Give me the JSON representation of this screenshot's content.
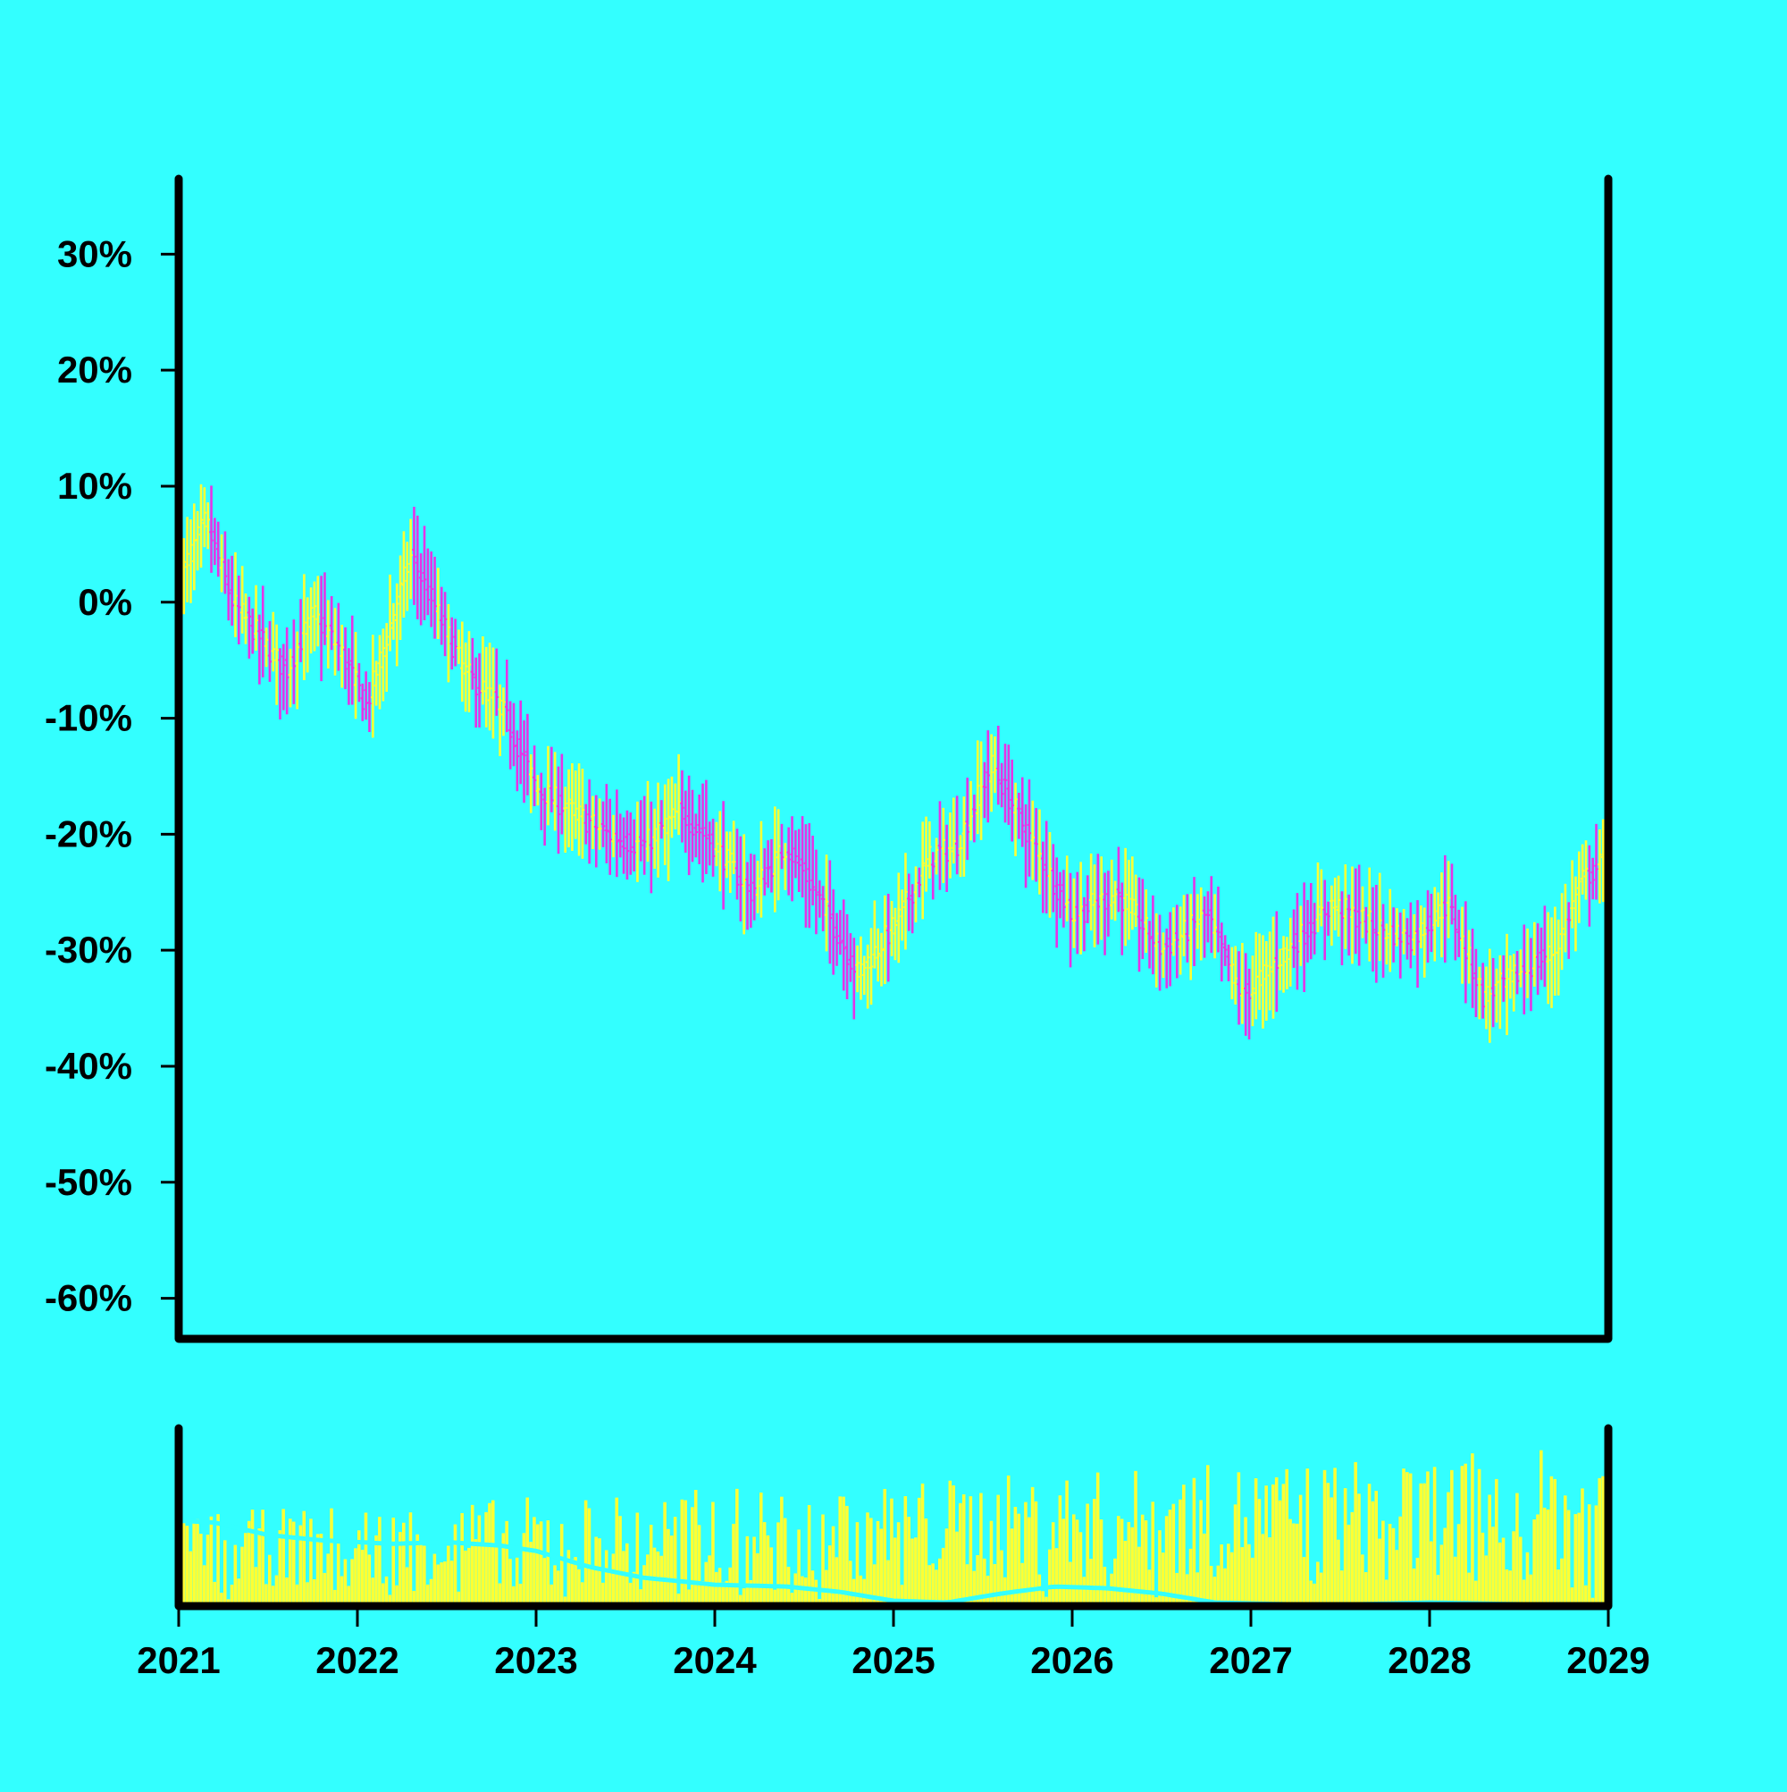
{
  "colors": {
    "background": "#33ffff",
    "up": "#ffff33",
    "down": "#e633e6",
    "axis": "#000000",
    "volume": "#ffff33",
    "volume_ma": "#33ffff"
  },
  "chart_data": {
    "type": "ohlc",
    "title": "",
    "xlabel": "",
    "ylabel": "",
    "x_tick_labels": [
      "2021",
      "2022",
      "2023",
      "2024",
      "2025",
      "2026",
      "2027",
      "2028",
      "2029"
    ],
    "y_tick_labels": [
      "30%",
      "20%",
      "10%",
      "0%",
      "-10%",
      "-20%",
      "-30%",
      "-40%",
      "-50%",
      "-60%"
    ],
    "y_tick_values": [
      30,
      20,
      10,
      0,
      -10,
      -20,
      -30,
      -40,
      -50,
      -60
    ],
    "xlim": [
      2021.0,
      2029.0
    ],
    "ylim": [
      -63.5,
      36.5
    ],
    "grid": false,
    "price_path": [
      {
        "year": 2021.0,
        "value": 2
      },
      {
        "year": 2021.15,
        "value": 7
      },
      {
        "year": 2021.3,
        "value": 0
      },
      {
        "year": 2021.45,
        "value": -3
      },
      {
        "year": 2021.6,
        "value": -6
      },
      {
        "year": 2021.75,
        "value": -1
      },
      {
        "year": 2021.9,
        "value": -4
      },
      {
        "year": 2022.05,
        "value": -9
      },
      {
        "year": 2022.2,
        "value": -1
      },
      {
        "year": 2022.3,
        "value": 4
      },
      {
        "year": 2022.45,
        "value": -1
      },
      {
        "year": 2022.6,
        "value": -6
      },
      {
        "year": 2022.8,
        "value": -9
      },
      {
        "year": 2023.0,
        "value": -16
      },
      {
        "year": 2023.2,
        "value": -18
      },
      {
        "year": 2023.4,
        "value": -20
      },
      {
        "year": 2023.6,
        "value": -21
      },
      {
        "year": 2023.8,
        "value": -18
      },
      {
        "year": 2024.0,
        "value": -21
      },
      {
        "year": 2024.2,
        "value": -25
      },
      {
        "year": 2024.4,
        "value": -21
      },
      {
        "year": 2024.6,
        "value": -26
      },
      {
        "year": 2024.8,
        "value": -32
      },
      {
        "year": 2025.0,
        "value": -28
      },
      {
        "year": 2025.2,
        "value": -22
      },
      {
        "year": 2025.35,
        "value": -21
      },
      {
        "year": 2025.55,
        "value": -14
      },
      {
        "year": 2025.75,
        "value": -20
      },
      {
        "year": 2026.0,
        "value": -27
      },
      {
        "year": 2026.25,
        "value": -25
      },
      {
        "year": 2026.5,
        "value": -30
      },
      {
        "year": 2026.75,
        "value": -27
      },
      {
        "year": 2026.95,
        "value": -34
      },
      {
        "year": 2027.2,
        "value": -30
      },
      {
        "year": 2027.45,
        "value": -26
      },
      {
        "year": 2027.7,
        "value": -28
      },
      {
        "year": 2027.9,
        "value": -29
      },
      {
        "year": 2028.1,
        "value": -26
      },
      {
        "year": 2028.3,
        "value": -34
      },
      {
        "year": 2028.5,
        "value": -32
      },
      {
        "year": 2028.7,
        "value": -30
      },
      {
        "year": 2028.85,
        "value": -24
      },
      {
        "year": 2029.0,
        "value": -22
      }
    ],
    "volume_ma_path": [
      {
        "year": 2021.0,
        "value": 0.48
      },
      {
        "year": 2021.2,
        "value": 0.47
      },
      {
        "year": 2021.5,
        "value": 0.4
      },
      {
        "year": 2021.8,
        "value": 0.37
      },
      {
        "year": 2022.2,
        "value": 0.35
      },
      {
        "year": 2022.5,
        "value": 0.36
      },
      {
        "year": 2022.8,
        "value": 0.34
      },
      {
        "year": 2023.0,
        "value": 0.31
      },
      {
        "year": 2023.3,
        "value": 0.22
      },
      {
        "year": 2023.6,
        "value": 0.16
      },
      {
        "year": 2024.0,
        "value": 0.12
      },
      {
        "year": 2024.4,
        "value": 0.11
      },
      {
        "year": 2024.7,
        "value": 0.08
      },
      {
        "year": 2025.0,
        "value": 0.03
      },
      {
        "year": 2025.3,
        "value": 0.02
      },
      {
        "year": 2025.6,
        "value": 0.07
      },
      {
        "year": 2025.9,
        "value": 0.11
      },
      {
        "year": 2026.2,
        "value": 0.1
      },
      {
        "year": 2026.5,
        "value": 0.07
      },
      {
        "year": 2026.8,
        "value": 0.02
      },
      {
        "year": 2027.2,
        "value": 0.01
      },
      {
        "year": 2027.6,
        "value": 0.01
      },
      {
        "year": 2028.0,
        "value": 0.02
      },
      {
        "year": 2028.5,
        "value": 0.01
      },
      {
        "year": 2029.0,
        "value": 0.01
      }
    ]
  }
}
